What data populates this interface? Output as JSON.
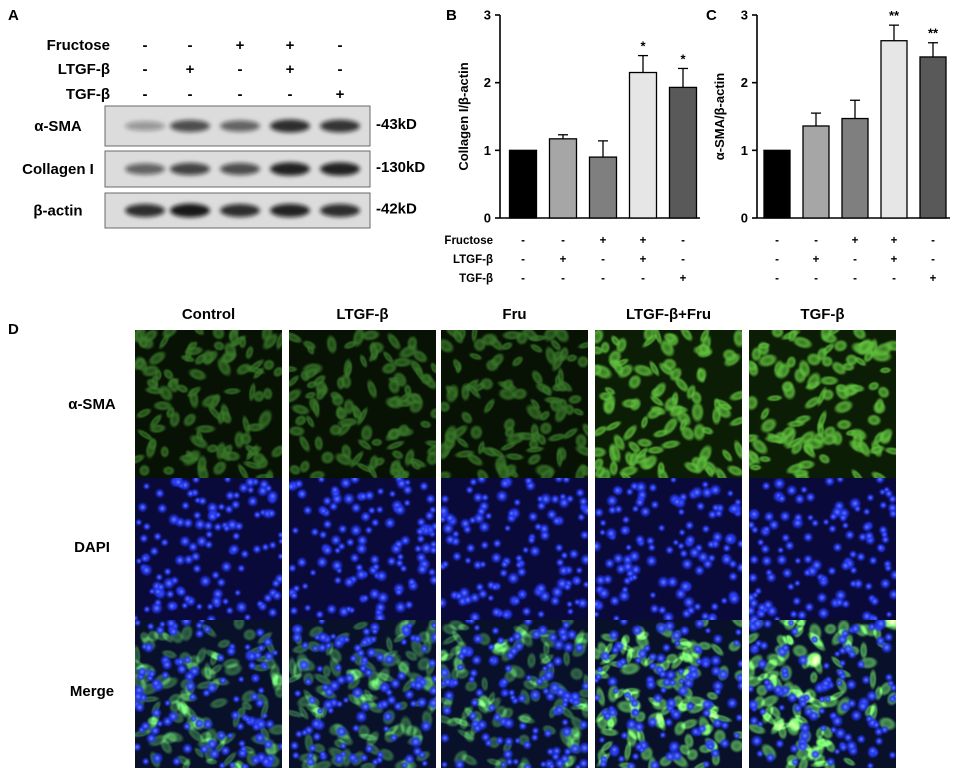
{
  "panel_labels": {
    "a": "A",
    "b": "B",
    "c": "C",
    "d": "D"
  },
  "panel_a": {
    "conditions": [
      {
        "label": "Fructose",
        "signs": [
          "-",
          "-",
          "+",
          "+",
          "-"
        ]
      },
      {
        "label": "LTGF-β",
        "signs": [
          "-",
          "+",
          "-",
          "+",
          "-"
        ]
      },
      {
        "label": "TGF-β",
        "signs": [
          "-",
          "-",
          "-",
          "-",
          "+"
        ]
      }
    ],
    "blots": [
      {
        "label": "α-SMA",
        "size": "-43kD",
        "band_intensity": [
          0.35,
          0.7,
          0.6,
          0.85,
          0.82
        ]
      },
      {
        "label": "Collagen I",
        "size": "-130kD",
        "band_intensity": [
          0.6,
          0.75,
          0.7,
          0.9,
          0.9
        ]
      },
      {
        "label": "β-actin",
        "size": "-42kD",
        "band_intensity": [
          0.85,
          0.95,
          0.85,
          0.9,
          0.85
        ]
      }
    ]
  },
  "chart_data": [
    {
      "type": "bar",
      "ylabel": "Collagen I/β-actin",
      "ylim": [
        0,
        3
      ],
      "yticks": [
        0,
        1,
        2,
        3
      ],
      "grid": false,
      "values": [
        1.0,
        1.17,
        0.9,
        2.15,
        1.93
      ],
      "errors": [
        0,
        0.06,
        0.24,
        0.25,
        0.28
      ],
      "significance": [
        "",
        "",
        "",
        "*",
        "*"
      ],
      "colors": [
        "#000000",
        "#a6a6a6",
        "#7f7f7f",
        "#e6e6e6",
        "#595959"
      ],
      "conditions": [
        {
          "label": "Fructose",
          "signs": [
            "-",
            "-",
            "+",
            "+",
            "-"
          ]
        },
        {
          "label": "LTGF-β",
          "signs": [
            "-",
            "+",
            "-",
            "+",
            "-"
          ]
        },
        {
          "label": "TGF-β",
          "signs": [
            "-",
            "-",
            "-",
            "-",
            "+"
          ]
        }
      ]
    },
    {
      "type": "bar",
      "ylabel": "α-SMA/β-actin",
      "ylim": [
        0,
        3
      ],
      "yticks": [
        0,
        1,
        2,
        3
      ],
      "grid": false,
      "values": [
        1.0,
        1.36,
        1.47,
        2.62,
        2.38
      ],
      "errors": [
        0,
        0.19,
        0.27,
        0.23,
        0.21
      ],
      "significance": [
        "",
        "",
        "",
        "**",
        "**"
      ],
      "colors": [
        "#000000",
        "#a6a6a6",
        "#7f7f7f",
        "#e6e6e6",
        "#595959"
      ],
      "conditions": [
        {
          "signs": [
            "-",
            "-",
            "+",
            "+",
            "-"
          ]
        },
        {
          "signs": [
            "-",
            "+",
            "-",
            "+",
            "-"
          ]
        },
        {
          "signs": [
            "-",
            "-",
            "-",
            "-",
            "+"
          ]
        }
      ]
    }
  ],
  "panel_d": {
    "columns": [
      "Control",
      "LTGF-β",
      "Fru",
      "LTGF-β+Fru",
      "TGF-β"
    ],
    "rows": [
      "α-SMA",
      "DAPI",
      "Merge"
    ],
    "channel_colors": {
      "alpha_sma": [
        "#3a7a2a",
        "#3a7a2a",
        "#3a7a2a",
        "#62c43e",
        "#62c43e"
      ],
      "dapi": "#2436f0"
    }
  }
}
